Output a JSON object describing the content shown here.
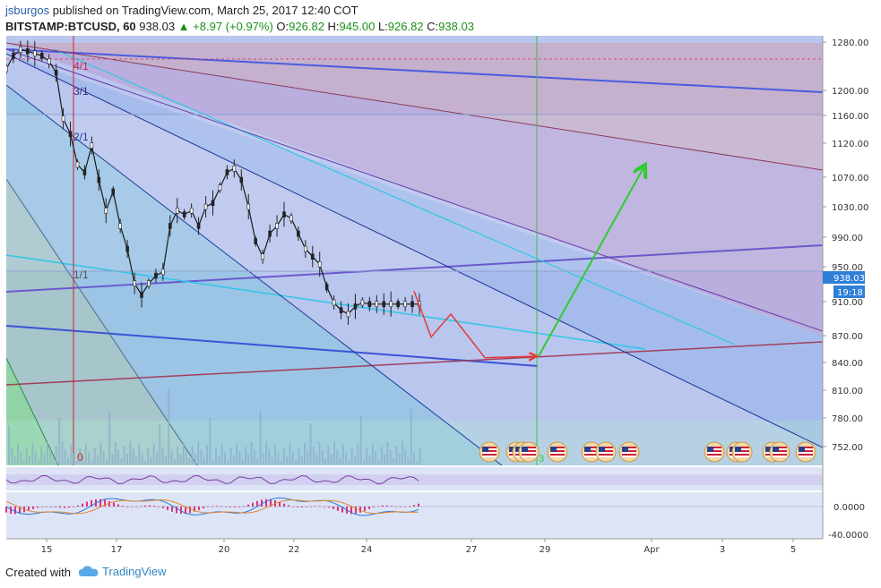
{
  "header": {
    "username": "jsburgos",
    "published_text": "published on TradingView.com, March 25, 2017 12:40 COT",
    "symbol": "BITSTAMP:BTCUSD, 60",
    "last": "938.03",
    "change": "+8.97 (+0.97%)",
    "o_label": "O:",
    "o_value": "926.82",
    "h_label": "H:",
    "h_value": "945.00",
    "l_label": "L:",
    "l_value": "926.82",
    "c_label": "C:",
    "c_value": "938.03"
  },
  "footer": {
    "created_with": "Created with",
    "brand": "TradingView"
  },
  "chart_data": {
    "type": "line",
    "price_axis_ticks": [
      "1280.00",
      "1200.00",
      "1160.00",
      "1120.00",
      "1070.00",
      "1030.00",
      "990.00",
      "950.00",
      "910.00",
      "870.00",
      "840.00",
      "810.00",
      "780.00",
      "752.00"
    ],
    "time_axis_ticks": [
      "15",
      "17",
      "20",
      "22",
      "24",
      "27",
      "29",
      "Apr",
      "3",
      "5"
    ],
    "current_price_label": "938.03",
    "countdown_label": "19:18",
    "oscillator_ticks": [
      "0.0000",
      "-40.0000"
    ],
    "fan_labels": [
      "4/1",
      "3/1",
      "2/1",
      "1/1",
      "0"
    ],
    "marker_label": "3",
    "price_series": {
      "name": "BTCUSD",
      "x": [
        0,
        2,
        4,
        6,
        8,
        10,
        12,
        14,
        16,
        18,
        20,
        22,
        24,
        26,
        28,
        30,
        32,
        34,
        36,
        38,
        40,
        42,
        44,
        46,
        48,
        50,
        52,
        54,
        56,
        58,
        60,
        62,
        64,
        66,
        68,
        70,
        72,
        74,
        76,
        78,
        80,
        82,
        84,
        86,
        88,
        90,
        92,
        94,
        96,
        98,
        100,
        102,
        104,
        106,
        108,
        110,
        112,
        114,
        116
      ],
      "y": [
        1245,
        1262,
        1270,
        1268,
        1265,
        1262,
        1255,
        1240,
        1180,
        1160,
        1120,
        1110,
        1145,
        1100,
        1060,
        1085,
        1040,
        1010,
        965,
        950,
        965,
        975,
        980,
        1040,
        1060,
        1055,
        1060,
        1040,
        1065,
        1070,
        1090,
        1110,
        1115,
        1100,
        1065,
        1020,
        1000,
        1030,
        1040,
        1055,
        1050,
        1030,
        1010,
        1000,
        990,
        960,
        940,
        930,
        925,
        935,
        940,
        938,
        938,
        938,
        938,
        938,
        938,
        938,
        938
      ],
      "color": "#222222"
    },
    "projection_red": {
      "name": "",
      "x": [
        0,
        1,
        2,
        3,
        4
      ],
      "y": [
        955,
        895,
        925,
        868,
        870
      ],
      "color": "#e53935"
    },
    "projection_green": {
      "name": "",
      "x": [
        0,
        1
      ],
      "y": [
        870,
        1120
      ],
      "color": "#2ecc2e"
    },
    "ylim": [
      740,
      1290
    ],
    "title": "",
    "xlabel": "",
    "ylabel": ""
  }
}
